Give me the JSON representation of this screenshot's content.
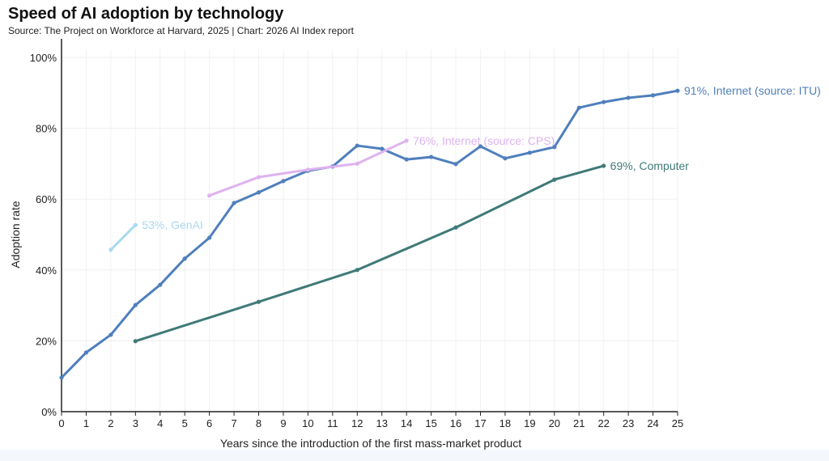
{
  "chart_data": {
    "type": "line",
    "title": "Speed of AI adoption by technology",
    "subtitle": "Source: The Project on Workforce at Harvard, 2025 | Chart: 2026 AI Index report",
    "xlabel": "Years since the introduction of the first mass-market product",
    "ylabel": "Adoption rate",
    "xlim": [
      0,
      25
    ],
    "ylim": [
      0,
      100
    ],
    "x_ticks": [
      0,
      1,
      2,
      3,
      4,
      5,
      6,
      7,
      8,
      9,
      10,
      11,
      12,
      13,
      14,
      15,
      16,
      17,
      18,
      19,
      20,
      21,
      22,
      23,
      24,
      25
    ],
    "y_ticks": [
      0,
      20,
      40,
      60,
      80,
      100
    ],
    "y_tick_labels": [
      "0%",
      "20%",
      "40%",
      "60%",
      "80%",
      "100%"
    ],
    "grid": true,
    "series": [
      {
        "name": "Internet (source: ITU)",
        "label": "91%, Internet (source: ITU)",
        "color": "#4f7fbd",
        "x": [
          0,
          1,
          2,
          3,
          4,
          5,
          6,
          7,
          8,
          9,
          10,
          11,
          12,
          13,
          14,
          15,
          16,
          17,
          18,
          19,
          20,
          21,
          22,
          23,
          24,
          25
        ],
        "y": [
          9.6,
          16.7,
          21.7,
          30.1,
          35.8,
          43.2,
          49.1,
          58.9,
          61.9,
          65.1,
          68,
          69.2,
          75.1,
          74.2,
          71.2,
          71.9,
          69.9,
          74.9,
          71.5,
          73.1,
          74.7,
          85.8,
          87.4,
          88.6,
          89.3,
          90.6
        ]
      },
      {
        "name": "Internet (source: CPS)",
        "label": "76%, Internet (source: CPS)",
        "color": "#deb3f0",
        "x": [
          6,
          8,
          10,
          12,
          14
        ],
        "y": [
          61,
          66.2,
          68.3,
          70,
          76.5
        ]
      },
      {
        "name": "GenAI",
        "label": "53%, GenAI",
        "color": "#a9d9f2",
        "x": [
          2,
          3
        ],
        "y": [
          45.7,
          52.7
        ]
      },
      {
        "name": "Computer",
        "label": "69%, Computer",
        "color": "#3f7a78",
        "x": [
          3,
          8,
          12,
          16,
          20,
          22
        ],
        "y": [
          19.9,
          31,
          40,
          52,
          65.5,
          69.4
        ]
      }
    ]
  }
}
